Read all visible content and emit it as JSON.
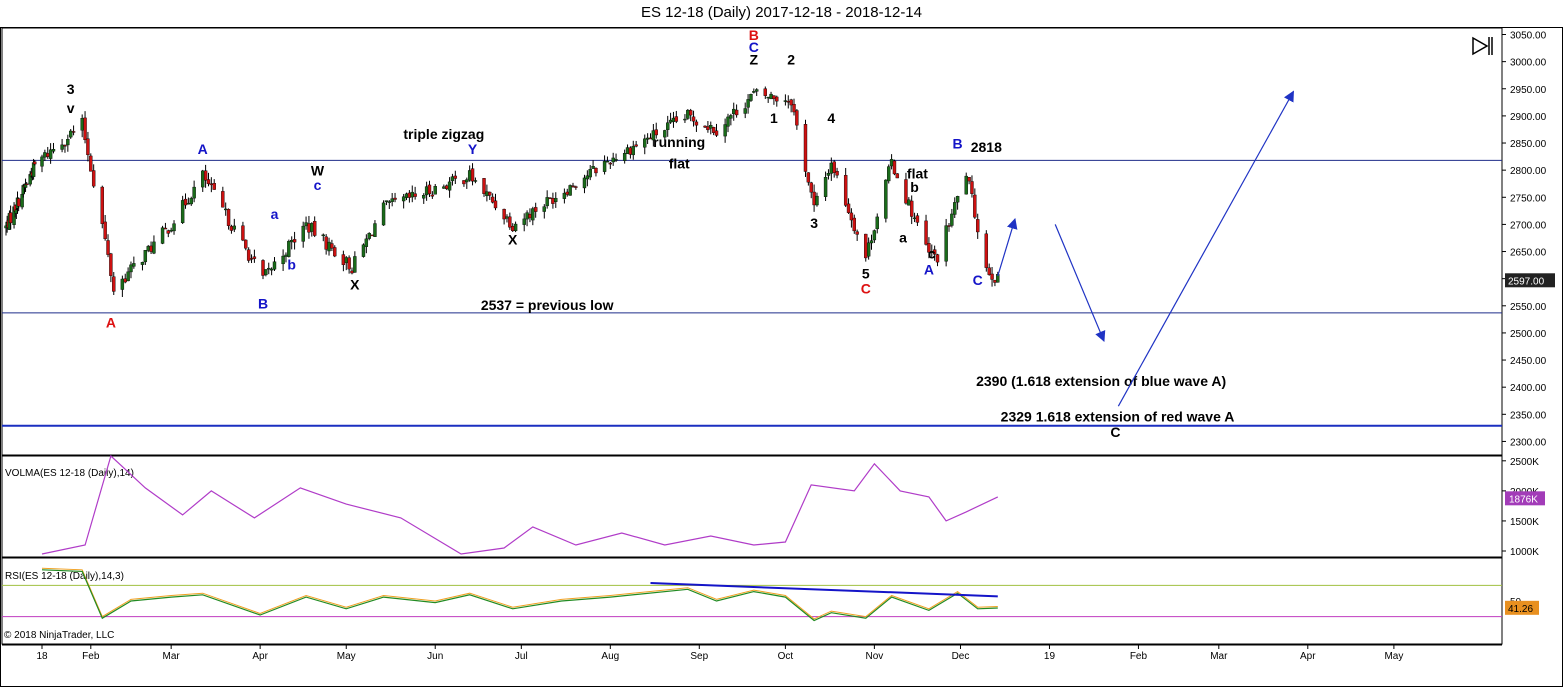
{
  "header": {
    "title": "ES 12-18 (Daily)  2017-12-18 - 2018-12-14",
    "copyright": "© 2018 NinjaTrader, LLC",
    "panel_toggle_icon": "panel-collapse-icon"
  },
  "colors": {
    "bull_candle": "#1a6b1a",
    "bear_candle": "#cc1111",
    "wick": "#000000",
    "hline": "#1f2d8a",
    "support_2329": "#1a2fc0",
    "arrows": "#1f33c4",
    "volma_line": "#b03cc8",
    "rsi_line": "#228b22",
    "rsi_signal": "#f0a020",
    "rsi_upper": "#a0c040",
    "rsi_lower": "#c03cc0",
    "rsi_trend": "#1414c8",
    "price_badge": "#222222",
    "volma_badge": "#a23cb8",
    "rsi_badge": "#e89020"
  },
  "chart_data": [
    {
      "type": "candlestick",
      "panel": "price",
      "y_ticks": [
        "3050.00",
        "3000.00",
        "2950.00",
        "2900.00",
        "2850.00",
        "2800.00",
        "2750.00",
        "2700.00",
        "2650.00",
        "2600.00",
        "2550.00",
        "2500.00",
        "2450.00",
        "2400.00",
        "2350.00",
        "2300.00"
      ],
      "y_tick_values": [
        3050,
        3000,
        2950,
        2900,
        2850,
        2800,
        2750,
        2700,
        2650,
        2600,
        2550,
        2500,
        2450,
        2400,
        2350,
        2300
      ],
      "ylim": [
        2275,
        3062
      ],
      "x_ticks": [
        "18",
        "Feb",
        "Mar",
        "Apr",
        "May",
        "Jun",
        "Jul",
        "Aug",
        "Sep",
        "Oct",
        "Nov",
        "Dec",
        "19",
        "Feb",
        "Mar",
        "Apr",
        "May"
      ],
      "x_range": [
        "2018-01-15",
        "2019-05-31"
      ],
      "x_tick_dates": [
        "2018-01-15",
        "2018-02-01",
        "2018-03-01",
        "2018-04-01",
        "2018-05-01",
        "2018-06-01",
        "2018-07-01",
        "2018-08-01",
        "2018-09-01",
        "2018-10-01",
        "2018-11-01",
        "2018-12-01",
        "2019-01-01",
        "2019-02-01",
        "2019-03-01",
        "2019-04-01",
        "2019-05-01"
      ],
      "last_price": "2597.00",
      "ohlc_dates": [
        "2017-12-18",
        "2018-01-29",
        "2018-02-05",
        "2018-02-09",
        "2018-03-01",
        "2018-03-12",
        "2018-04-02",
        "2018-04-17",
        "2018-05-03",
        "2018-05-14",
        "2018-06-13",
        "2018-06-28",
        "2018-08-01",
        "2018-08-28",
        "2018-09-07",
        "2018-09-20",
        "2018-10-03",
        "2018-10-11",
        "2018-10-17",
        "2018-10-29",
        "2018-11-07",
        "2018-11-20",
        "2018-11-23",
        "2018-12-03",
        "2018-12-10",
        "2018-12-14"
      ],
      "closes": [
        2695,
        2885,
        2700,
        2580,
        2700,
        2790,
        2600,
        2700,
        2620,
        2730,
        2790,
        2700,
        2820,
        2900,
        2875,
        2940,
        2930,
        2730,
        2815,
        2640,
        2815,
        2645,
        2640,
        2795,
        2620,
        2597
      ],
      "horizontal_levels": [
        {
          "value": 2818,
          "label": "2818"
        },
        {
          "value": 2537,
          "label": "2537 = previous low"
        },
        {
          "value": 2329,
          "label": "2329   1.618 extension of red wave A"
        }
      ],
      "annotations": [
        {
          "text": "3",
          "date": "2018-01-25",
          "price": 2940,
          "color": "#000000"
        },
        {
          "text": "v",
          "date": "2018-01-25",
          "price": 2905,
          "color": "#000000"
        },
        {
          "text": "A",
          "date": "2018-02-08",
          "price": 2510,
          "color": "#dd1111"
        },
        {
          "text": "A",
          "date": "2018-03-12",
          "price": 2830,
          "color": "#1414c8"
        },
        {
          "text": "B",
          "date": "2018-04-02",
          "price": 2545,
          "color": "#1414c8"
        },
        {
          "text": "a",
          "date": "2018-04-06",
          "price": 2710,
          "color": "#1414c8"
        },
        {
          "text": "b",
          "date": "2018-04-12",
          "price": 2617,
          "color": "#1414c8"
        },
        {
          "text": "W",
          "date": "2018-04-21",
          "price": 2790,
          "color": "#000000"
        },
        {
          "text": "c",
          "date": "2018-04-21",
          "price": 2763,
          "color": "#1414c8"
        },
        {
          "text": "X",
          "date": "2018-05-04",
          "price": 2580,
          "color": "#000000"
        },
        {
          "text": "triple zigzag",
          "date": "2018-06-04",
          "price": 2857,
          "color": "#000000"
        },
        {
          "text": "Y",
          "date": "2018-06-14",
          "price": 2830,
          "color": "#1414c8"
        },
        {
          "text": "X",
          "date": "2018-06-28",
          "price": 2663,
          "color": "#000000"
        },
        {
          "text": "running",
          "date": "2018-08-25",
          "price": 2843,
          "color": "#000000"
        },
        {
          "text": "flat",
          "date": "2018-08-25",
          "price": 2803,
          "color": "#000000"
        },
        {
          "text": "B",
          "date": "2018-09-20",
          "price": 3040,
          "color": "#dd1111"
        },
        {
          "text": "C",
          "date": "2018-09-20",
          "price": 3018,
          "color": "#1414c8"
        },
        {
          "text": "Z",
          "date": "2018-09-20",
          "price": 2995,
          "color": "#000000"
        },
        {
          "text": "2",
          "date": "2018-10-03",
          "price": 2995,
          "color": "#000000"
        },
        {
          "text": "1",
          "date": "2018-09-27",
          "price": 2887,
          "color": "#000000"
        },
        {
          "text": "4",
          "date": "2018-10-17",
          "price": 2887,
          "color": "#000000"
        },
        {
          "text": "3",
          "date": "2018-10-11",
          "price": 2693,
          "color": "#000000"
        },
        {
          "text": "5",
          "date": "2018-10-29",
          "price": 2600,
          "color": "#000000"
        },
        {
          "text": "C",
          "date": "2018-10-29",
          "price": 2573,
          "color": "#dd1111"
        },
        {
          "text": "flat",
          "date": "2018-11-16",
          "price": 2785,
          "color": "#000000"
        },
        {
          "text": "b",
          "date": "2018-11-15",
          "price": 2760,
          "color": "#000000"
        },
        {
          "text": "a",
          "date": "2018-11-11",
          "price": 2667,
          "color": "#000000"
        },
        {
          "text": "c",
          "date": "2018-11-21",
          "price": 2637,
          "color": "#000000"
        },
        {
          "text": "A",
          "date": "2018-11-20",
          "price": 2608,
          "color": "#1414c8"
        },
        {
          "text": "B",
          "date": "2018-11-30",
          "price": 2840,
          "color": "#1414c8"
        },
        {
          "text": "2818",
          "date": "2018-12-10",
          "price": 2833,
          "color": "#000000"
        },
        {
          "text": "C",
          "date": "2018-12-07",
          "price": 2588,
          "color": "#1414c8"
        },
        {
          "text": "2390 (1.618 extension of blue wave A)",
          "date": "2019-01-19",
          "price": 2402,
          "color": "#000000"
        },
        {
          "text": "C",
          "date": "2019-01-24",
          "price": 2308,
          "color": "#000000"
        }
      ],
      "arrows": [
        {
          "from": [
            "2018-12-14",
            2605
          ],
          "to": [
            "2018-12-20",
            2710
          ]
        },
        {
          "from": [
            "2019-01-03",
            2700
          ],
          "to": [
            "2019-01-20",
            2485
          ]
        },
        {
          "from": [
            "2019-01-25",
            2365
          ],
          "to": [
            "2019-03-27",
            2945
          ]
        }
      ]
    },
    {
      "type": "line",
      "panel": "volma",
      "title": "VOLMA(ES 12-18 (Daily),14)",
      "y_ticks": [
        "2500K",
        "2000K",
        "1500K",
        "1000K"
      ],
      "y_tick_values": [
        2500000,
        2000000,
        1500000,
        1000000
      ],
      "ylim": [
        900000,
        2580000
      ],
      "last_value": "1876K",
      "dates": [
        "2018-01-15",
        "2018-01-30",
        "2018-02-08",
        "2018-02-20",
        "2018-03-05",
        "2018-03-15",
        "2018-03-30",
        "2018-04-15",
        "2018-05-01",
        "2018-05-20",
        "2018-06-10",
        "2018-06-25",
        "2018-07-05",
        "2018-07-20",
        "2018-08-05",
        "2018-08-20",
        "2018-09-05",
        "2018-09-20",
        "2018-10-01",
        "2018-10-10",
        "2018-10-25",
        "2018-11-01",
        "2018-11-10",
        "2018-11-20",
        "2018-11-26",
        "2018-12-03",
        "2018-12-14"
      ],
      "values": [
        950000,
        1100000,
        2580000,
        2050000,
        1600000,
        2000000,
        1550000,
        2050000,
        1780000,
        1550000,
        950000,
        1050000,
        1400000,
        1100000,
        1300000,
        1100000,
        1250000,
        1100000,
        1150000,
        2100000,
        2000000,
        2450000,
        2000000,
        1900000,
        1500000,
        1650000,
        1900000
      ]
    },
    {
      "type": "line",
      "panel": "rsi",
      "title": "RSI(ES 12-18 (Daily),14,3)",
      "y_ticks": [
        "50"
      ],
      "y_tick_values": [
        50
      ],
      "ylim": [
        0,
        100
      ],
      "levels": [
        70,
        30
      ],
      "last_value": "41.26",
      "dates": [
        "2018-01-15",
        "2018-01-29",
        "2018-02-05",
        "2018-02-15",
        "2018-03-01",
        "2018-03-12",
        "2018-04-01",
        "2018-04-17",
        "2018-05-01",
        "2018-05-14",
        "2018-06-01",
        "2018-06-13",
        "2018-06-28",
        "2018-07-15",
        "2018-08-01",
        "2018-08-28",
        "2018-09-07",
        "2018-09-20",
        "2018-10-01",
        "2018-10-11",
        "2018-10-17",
        "2018-10-29",
        "2018-11-07",
        "2018-11-20",
        "2018-11-30",
        "2018-12-07",
        "2018-12-14"
      ],
      "values": [
        90,
        88,
        28,
        50,
        55,
        58,
        32,
        55,
        40,
        55,
        48,
        58,
        40,
        50,
        55,
        65,
        50,
        62,
        55,
        25,
        35,
        28,
        55,
        38,
        60,
        40,
        41
      ],
      "trendline": [
        [
          "2018-08-15",
          73
        ],
        [
          "2018-12-14",
          56
        ]
      ]
    }
  ]
}
